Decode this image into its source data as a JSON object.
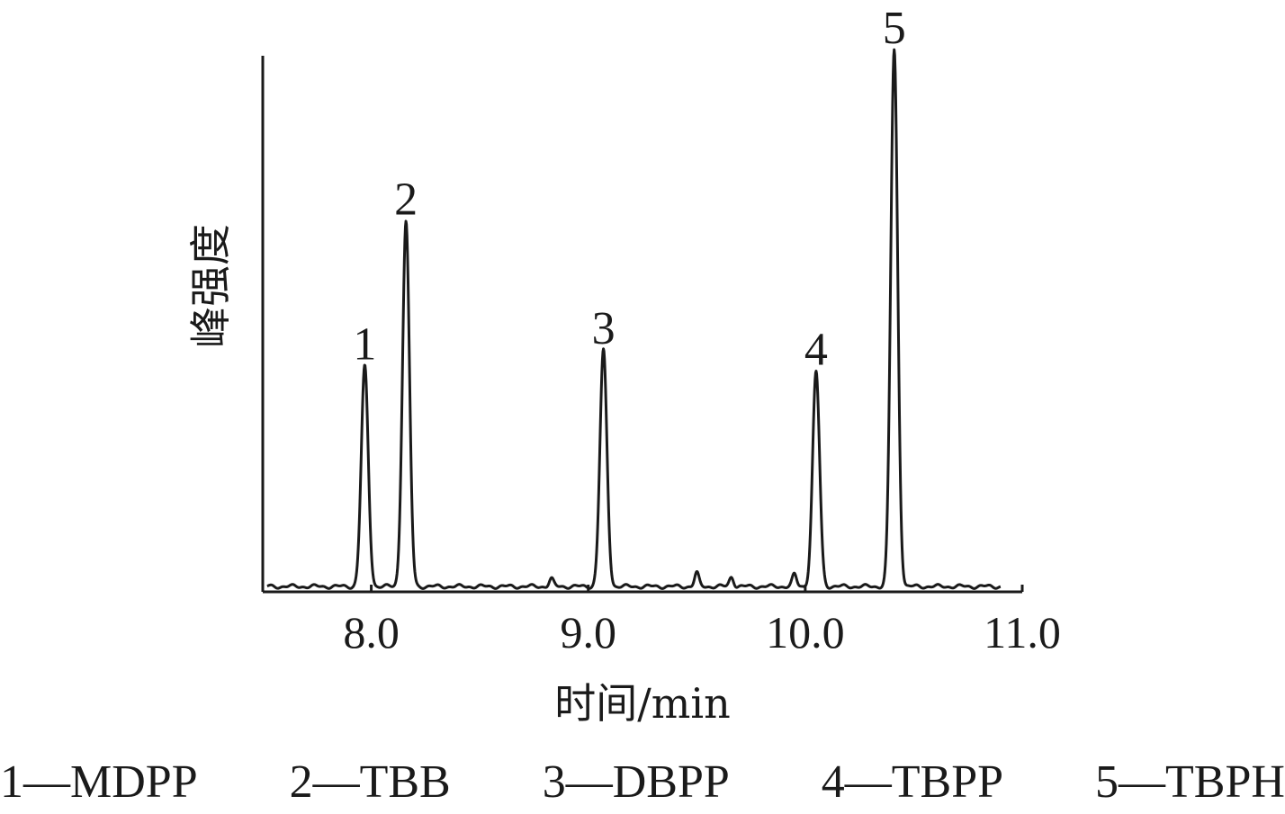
{
  "chart_data": {
    "type": "line",
    "xlabel": "时间/min",
    "ylabel": "峰强度",
    "xlim": [
      7.5,
      11.0
    ],
    "ylim": [
      0,
      100
    ],
    "x_ticks": [
      "8.0",
      "9.0",
      "10.0",
      "11.0"
    ],
    "x_tick_values": [
      8.0,
      9.0,
      10.0,
      11.0
    ],
    "y_ticks": [],
    "grid": false,
    "baseline": 1,
    "peaks": [
      {
        "label": "1",
        "x": 7.97,
        "y": 41
      },
      {
        "label": "2",
        "x": 8.16,
        "y": 68
      },
      {
        "label": "3",
        "x": 9.07,
        "y": 44
      },
      {
        "label": "4",
        "x": 10.05,
        "y": 40
      },
      {
        "label": "5",
        "x": 10.41,
        "y": 100
      }
    ],
    "minor_bumps": [
      {
        "x": 9.5,
        "y": 2.5
      },
      {
        "x": 9.66,
        "y": 1.8
      },
      {
        "x": 9.95,
        "y": 2.2
      },
      {
        "x": 8.83,
        "y": 1.4
      }
    ]
  },
  "legend": [
    "1—MDPP",
    "2—TBB",
    "3—DBPP",
    "4—TBPP",
    "5—TBPH"
  ]
}
